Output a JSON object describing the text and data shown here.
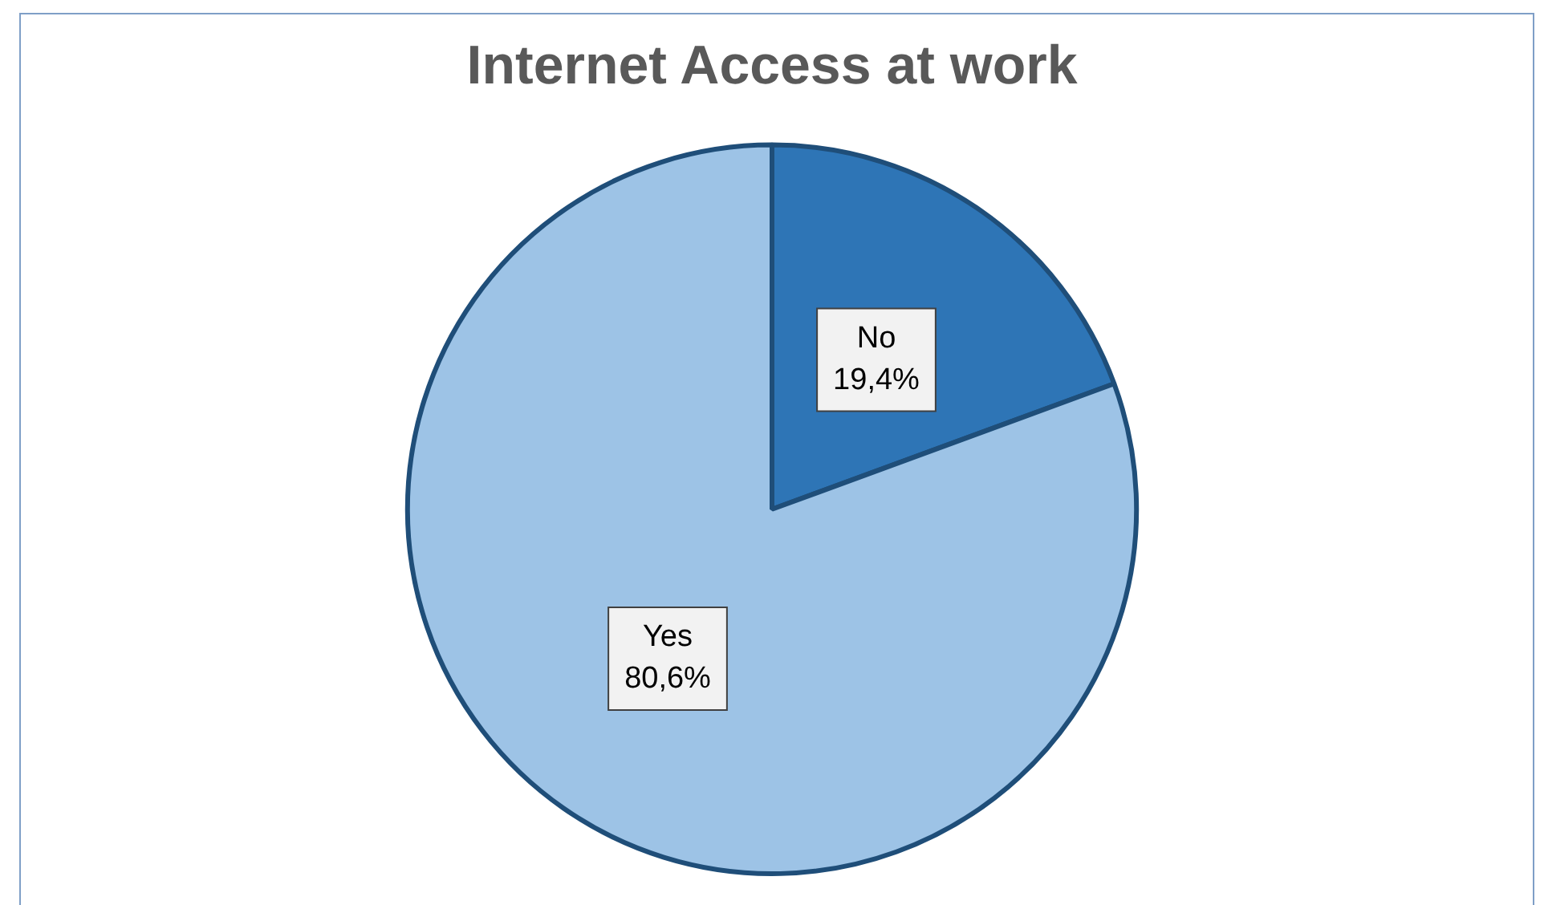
{
  "chart_data": {
    "type": "pie",
    "title": "Internet Access at work",
    "categories": [
      "No",
      "Yes"
    ],
    "values": [
      19.4,
      80.6
    ],
    "colors": [
      "#2e75b6",
      "#9dc3e6"
    ],
    "value_labels": [
      "19,4%",
      "80,6%"
    ]
  }
}
